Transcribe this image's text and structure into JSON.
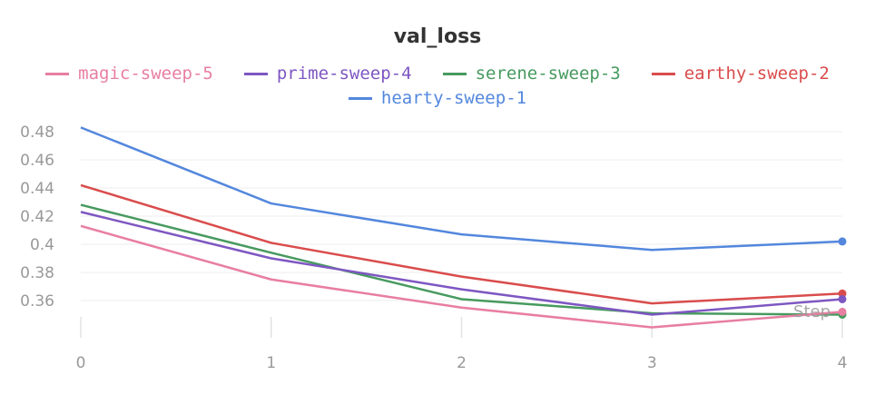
{
  "chart_data": {
    "type": "line",
    "title": "val_loss",
    "xlabel": "Step",
    "ylabel": "",
    "x": [
      0,
      1,
      2,
      3,
      4
    ],
    "xticks": [
      "0",
      "1",
      "2",
      "3",
      "4"
    ],
    "yticks": [
      "0.36",
      "0.38",
      "0.4",
      "0.42",
      "0.44",
      "0.46",
      "0.48"
    ],
    "ylim": [
      0.335,
      0.485
    ],
    "grid": true,
    "legend": "top",
    "series": [
      {
        "name": "magic-sweep-5",
        "color": "#e87ea1",
        "values": [
          0.413,
          0.375,
          0.355,
          0.341,
          0.352
        ]
      },
      {
        "name": "prime-sweep-4",
        "color": "#7e57c2",
        "values": [
          0.423,
          0.39,
          0.368,
          0.35,
          0.361
        ]
      },
      {
        "name": "serene-sweep-3",
        "color": "#479a5f",
        "values": [
          0.428,
          0.394,
          0.361,
          0.351,
          0.35
        ]
      },
      {
        "name": "earthy-sweep-2",
        "color": "#da4c4c",
        "values": [
          0.442,
          0.401,
          0.377,
          0.358,
          0.365
        ]
      },
      {
        "name": "hearty-sweep-1",
        "color": "#5387dd",
        "values": [
          0.483,
          0.429,
          0.407,
          0.396,
          0.402
        ]
      }
    ]
  }
}
